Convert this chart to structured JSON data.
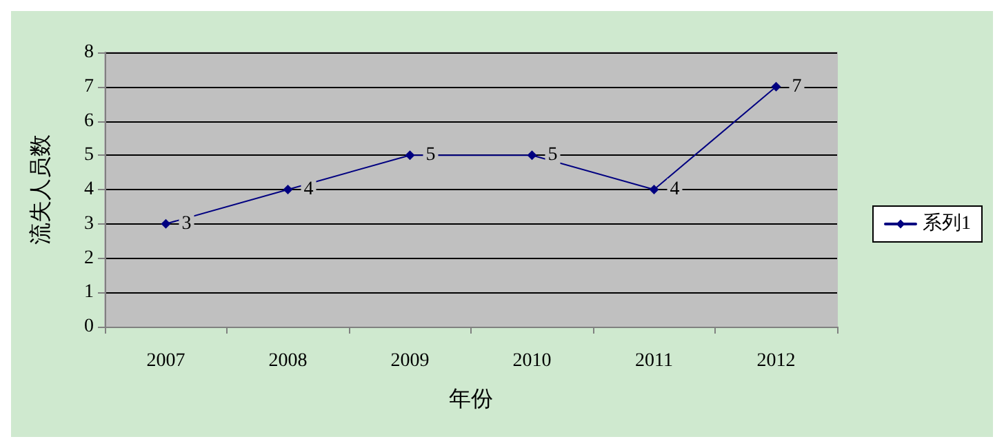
{
  "chart_data": {
    "type": "line",
    "xlabel": "年份",
    "ylabel": "流失人员数",
    "categories": [
      "2007",
      "2008",
      "2009",
      "2010",
      "2011",
      "2012"
    ],
    "series": [
      {
        "name": "系列1",
        "color": "#000080",
        "values": [
          3,
          4,
          5,
          5,
          4,
          7
        ]
      }
    ],
    "ylim": [
      0,
      8
    ],
    "yticks": [
      0,
      1,
      2,
      3,
      4,
      5,
      6,
      7,
      8
    ],
    "grid": "y",
    "legend": "right",
    "marker": "diamond",
    "line_style": "solid",
    "data_labels": true
  }
}
